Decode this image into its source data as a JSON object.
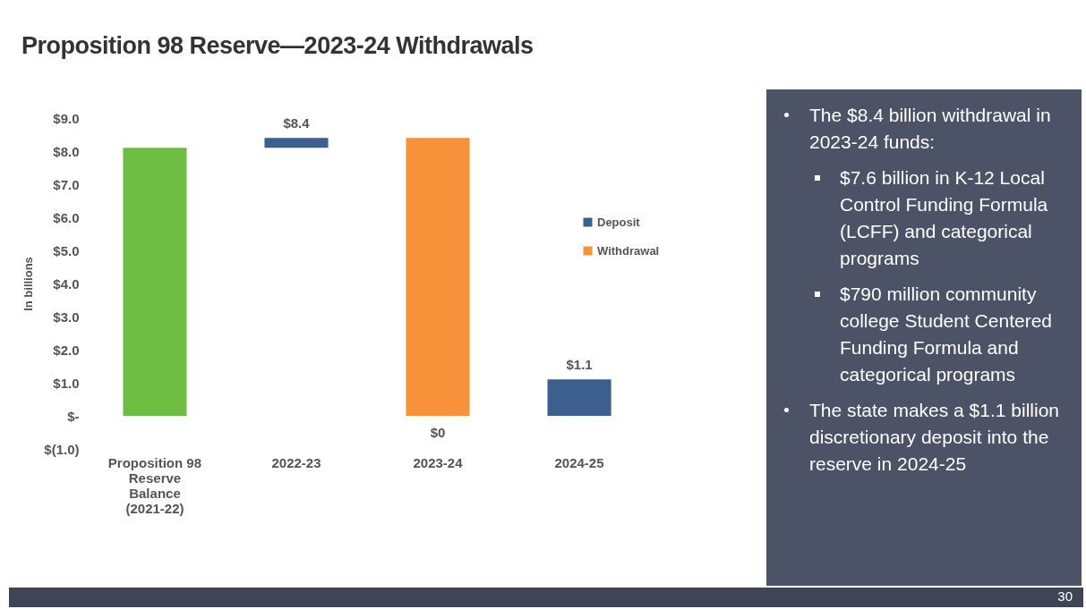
{
  "chart_data": {
    "type": "bar",
    "title": "Proposition 98 Reserve—2023-24 Withdrawals",
    "ylabel": "In billions",
    "categories": [
      "Proposition 98 Reserve Balance (2021-22)",
      "2022-23",
      "2023-24",
      "2024-25"
    ],
    "series": [
      {
        "color": "#6fbe44",
        "values": [
          8.1,
          null,
          null,
          null
        ],
        "base": [
          0,
          null,
          null,
          null
        ]
      },
      {
        "name": "Deposit",
        "color": "#3d5f8f",
        "values": [
          null,
          0.3,
          null,
          1.1
        ],
        "base": [
          null,
          8.1,
          null,
          0
        ]
      },
      {
        "name": "Withdrawal",
        "color": "#f7923a",
        "values": [
          null,
          null,
          -8.4,
          null
        ],
        "base": [
          null,
          null,
          8.4,
          null
        ]
      }
    ],
    "ylim": [
      -1,
      9
    ],
    "yticks": [
      {
        "value": -1,
        "label": "$(1.0)"
      },
      {
        "value": 0,
        "label": "$-"
      },
      {
        "value": 1,
        "label": "$1.0"
      },
      {
        "value": 2,
        "label": "$2.0"
      },
      {
        "value": 3,
        "label": "$3.0"
      },
      {
        "value": 4,
        "label": "$4.0"
      },
      {
        "value": 5,
        "label": "$5.0"
      },
      {
        "value": 6,
        "label": "$6.0"
      },
      {
        "value": 7,
        "label": "$7.0"
      },
      {
        "value": 8,
        "label": "$8.0"
      },
      {
        "value": 9,
        "label": "$9.0"
      }
    ],
    "grid": false,
    "legend": "right",
    "annotations": [
      "The $8.4 billion withdrawal in 2023-24 funds:",
      "$7.6 billion in K-12 Local Control Funding Formula (LCFF) and categorical programs",
      "$790 million community college Student Centered Funding Formula and categorical programs",
      "The state makes a $1.1 billion discretionary deposit into the reserve in 2024-25",
      "30",
      {
        "text": "$8.4",
        "x": "2022-23",
        "y": 8.4
      },
      {
        "text": "$0",
        "x": "2023-24",
        "y": 0
      },
      {
        "text": "$1.1",
        "x": "2024-25",
        "y": 1.1
      }
    ]
  }
}
